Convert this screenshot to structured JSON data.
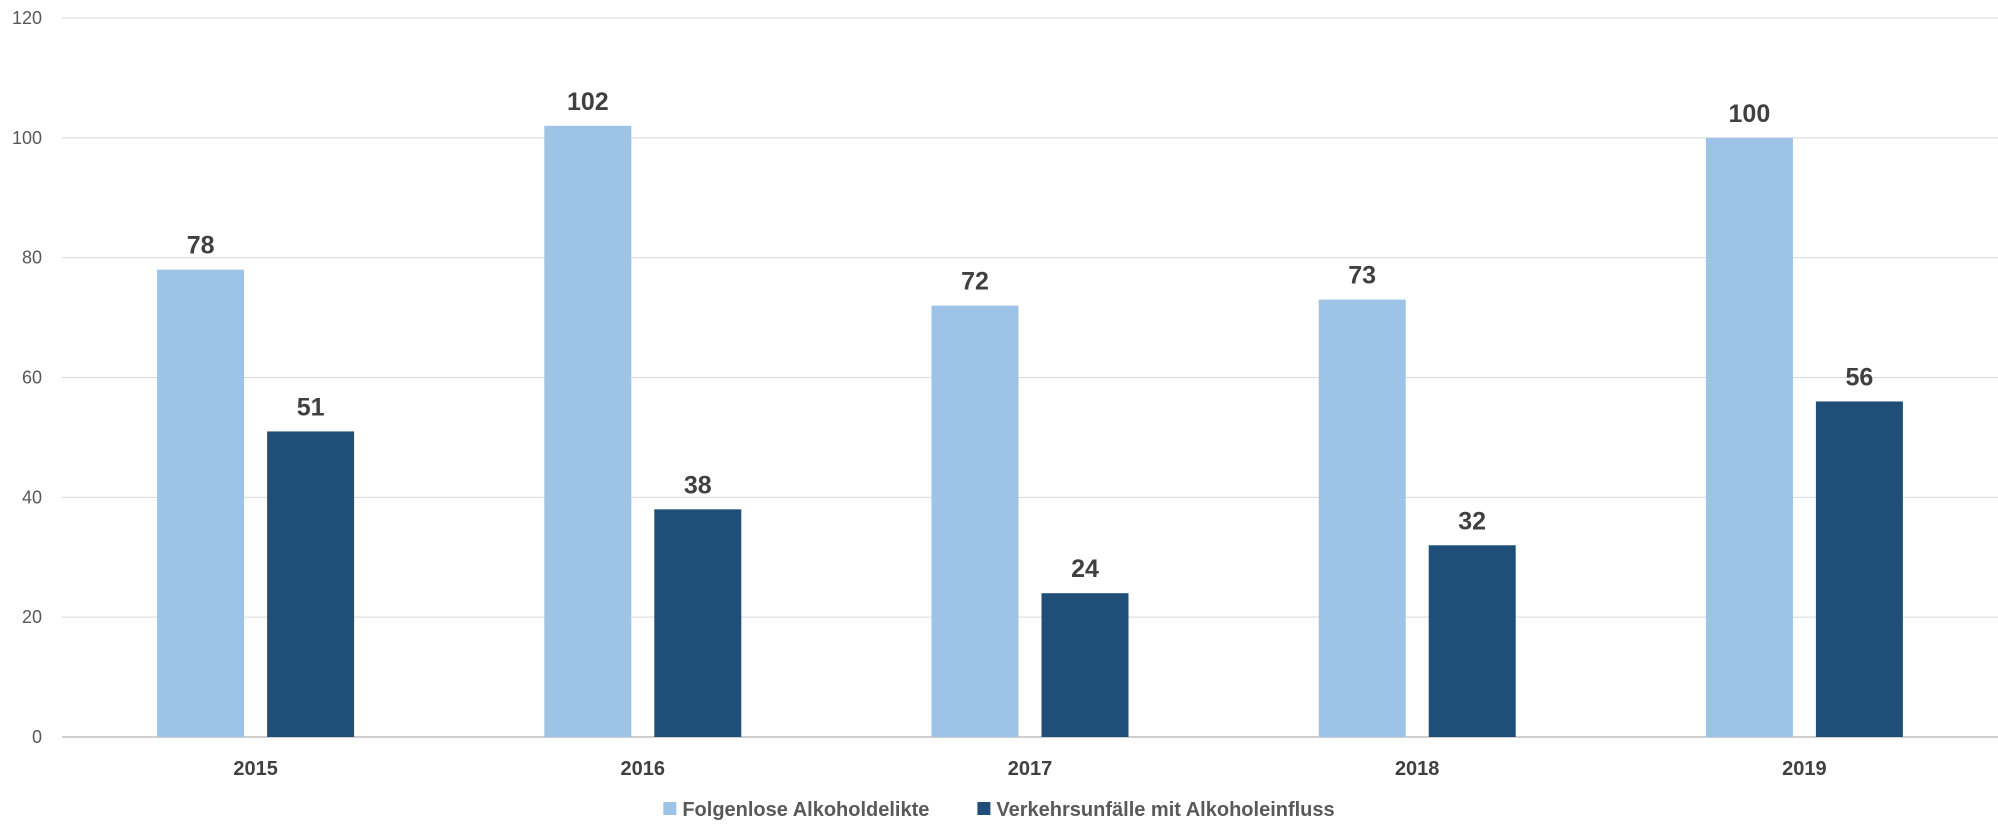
{
  "chart_data": {
    "type": "bar",
    "title": "",
    "xlabel": "",
    "ylabel": "",
    "categories": [
      "2015",
      "2016",
      "2017",
      "2018",
      "2019"
    ],
    "series": [
      {
        "name": "Folgenlose Alkoholdelikte",
        "color": "#9DC3E6",
        "values": [
          78,
          102,
          72,
          73,
          100
        ]
      },
      {
        "name": "Verkehrsunfälle mit Alkoholeinfluss",
        "color": "#1F4E79",
        "values": [
          51,
          38,
          24,
          32,
          56
        ]
      }
    ],
    "ylim": [
      0,
      120
    ],
    "yticks": [
      0,
      20,
      40,
      60,
      80,
      100,
      120
    ],
    "grid": true,
    "legend_position": "bottom",
    "data_labels": true,
    "colors": {
      "gridline": "#D9D9D9",
      "axis": "#BFBFBF",
      "text": "#404040",
      "tick_text": "#595959"
    }
  }
}
